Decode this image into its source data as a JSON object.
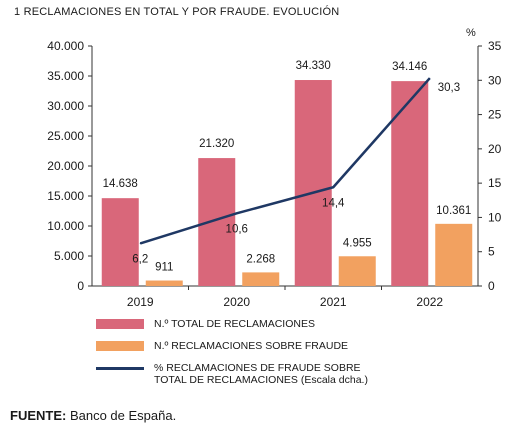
{
  "title": "1  RECLAMACIONES EN TOTAL Y POR FRAUDE. EVOLUCIÓN",
  "source_label": "FUENTE:",
  "source_text": " Banco de España.",
  "colors": {
    "total_bar": "#d9677a",
    "fraud_bar": "#f2a160",
    "fraud_pct_line": "#1f3864",
    "axis": "#333333"
  },
  "chart_data": {
    "type": "bar",
    "categories": [
      "2019",
      "2020",
      "2021",
      "2022"
    ],
    "series": [
      {
        "name": "N.º TOTAL DE RECLAMACIONES",
        "kind": "bar",
        "axis": "left",
        "values": [
          14638,
          21320,
          34330,
          34146
        ],
        "labels": [
          "14.638",
          "21.320",
          "34.330",
          "34.146"
        ]
      },
      {
        "name": "N.º RECLAMACIONES SOBRE FRAUDE",
        "kind": "bar",
        "axis": "left",
        "values": [
          911,
          2268,
          4955,
          10361
        ],
        "labels": [
          "911",
          "2.268",
          "4.955",
          "10.361"
        ]
      },
      {
        "name": "% RECLAMACIONES DE FRAUDE SOBRE\nTOTAL DE RECLAMACIONES (Escala dcha.)",
        "kind": "line",
        "axis": "right",
        "values": [
          6.2,
          10.6,
          14.4,
          30.3
        ],
        "labels": [
          "6,2",
          "10,6",
          "14,4",
          "30,3"
        ]
      }
    ],
    "y_left": {
      "lim": [
        0,
        40000
      ],
      "ticks": [
        0,
        5000,
        10000,
        15000,
        20000,
        25000,
        30000,
        35000,
        40000
      ],
      "tick_labels": [
        "0",
        "5.000",
        "10.000",
        "15.000",
        "20.000",
        "25.000",
        "30.000",
        "35.000",
        "40.000"
      ]
    },
    "y_right": {
      "unit": "%",
      "lim": [
        0,
        35
      ],
      "ticks": [
        0,
        5,
        10,
        15,
        20,
        25,
        30,
        35
      ],
      "tick_labels": [
        "0",
        "5",
        "10",
        "15",
        "20",
        "25",
        "30",
        "35"
      ]
    },
    "grid": false,
    "legend_position": "bottom"
  }
}
